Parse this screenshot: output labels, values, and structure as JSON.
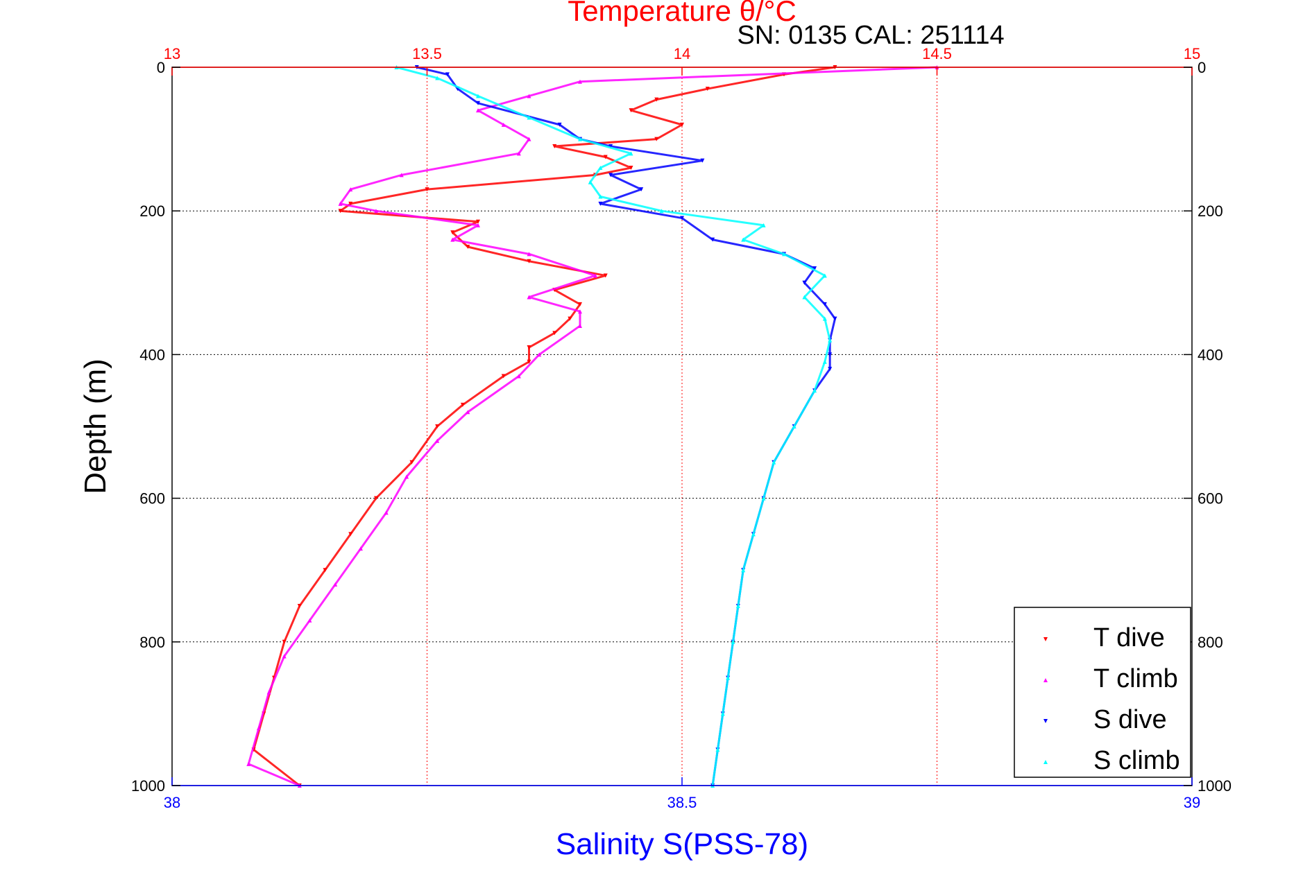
{
  "chart_data": {
    "type": "scatter",
    "title": "Temperature θ/°C",
    "subtitle": "SN: 0135  CAL: 251114",
    "xlabel_bottom": "Salinity S(PSS-78)",
    "xlabel_top": "Temperature θ/°C",
    "ylabel": "Depth (m)",
    "salinity_axis": {
      "lim": [
        38,
        39
      ],
      "ticks": [
        "38",
        "38.5",
        "39"
      ],
      "tick_values": [
        38,
        38.5,
        39
      ],
      "color": "#0000ff"
    },
    "temperature_axis": {
      "lim": [
        13,
        15
      ],
      "ticks": [
        "13",
        "13.5",
        "14",
        "14.5",
        "15"
      ],
      "tick_values": [
        13,
        13.5,
        14,
        14.5,
        15
      ],
      "color": "#ff0000"
    },
    "depth_axis": {
      "lim": [
        0,
        1000
      ],
      "reversed": true,
      "ticks": [
        "0",
        "200",
        "400",
        "600",
        "800",
        "1000"
      ],
      "tick_values": [
        0,
        200,
        400,
        600,
        800,
        1000
      ]
    },
    "grid": true,
    "legend_position": "bottom-right",
    "legend": [
      "T dive",
      "T climb",
      "S dive",
      "S climb"
    ],
    "series": [
      {
        "name": "T dive",
        "axis": "temperature",
        "color": "#ff0000",
        "marker": "triangle-down",
        "points": [
          [
            14.3,
            0
          ],
          [
            14.2,
            10
          ],
          [
            14.05,
            30
          ],
          [
            13.95,
            45
          ],
          [
            13.9,
            60
          ],
          [
            14.0,
            80
          ],
          [
            13.95,
            100
          ],
          [
            13.75,
            110
          ],
          [
            13.85,
            125
          ],
          [
            13.9,
            140
          ],
          [
            13.83,
            150
          ],
          [
            13.5,
            170
          ],
          [
            13.35,
            190
          ],
          [
            13.33,
            200
          ],
          [
            13.6,
            215
          ],
          [
            13.55,
            230
          ],
          [
            13.58,
            250
          ],
          [
            13.7,
            270
          ],
          [
            13.85,
            290
          ],
          [
            13.75,
            310
          ],
          [
            13.8,
            330
          ],
          [
            13.78,
            350
          ],
          [
            13.75,
            370
          ],
          [
            13.7,
            390
          ],
          [
            13.7,
            410
          ],
          [
            13.65,
            430
          ],
          [
            13.57,
            470
          ],
          [
            13.52,
            500
          ],
          [
            13.47,
            550
          ],
          [
            13.4,
            600
          ],
          [
            13.35,
            650
          ],
          [
            13.3,
            700
          ],
          [
            13.25,
            750
          ],
          [
            13.22,
            800
          ],
          [
            13.2,
            850
          ],
          [
            13.18,
            900
          ],
          [
            13.16,
            950
          ],
          [
            13.25,
            1000
          ]
        ]
      },
      {
        "name": "T climb",
        "axis": "temperature",
        "color": "#ff00ff",
        "marker": "triangle-up",
        "points": [
          [
            14.5,
            0
          ],
          [
            13.8,
            20
          ],
          [
            13.7,
            40
          ],
          [
            13.6,
            60
          ],
          [
            13.65,
            80
          ],
          [
            13.7,
            100
          ],
          [
            13.68,
            120
          ],
          [
            13.45,
            150
          ],
          [
            13.35,
            170
          ],
          [
            13.33,
            190
          ],
          [
            13.4,
            200
          ],
          [
            13.6,
            220
          ],
          [
            13.55,
            240
          ],
          [
            13.7,
            260
          ],
          [
            13.83,
            290
          ],
          [
            13.7,
            320
          ],
          [
            13.8,
            340
          ],
          [
            13.8,
            360
          ],
          [
            13.72,
            400
          ],
          [
            13.68,
            430
          ],
          [
            13.58,
            480
          ],
          [
            13.52,
            520
          ],
          [
            13.46,
            570
          ],
          [
            13.42,
            620
          ],
          [
            13.37,
            670
          ],
          [
            13.32,
            720
          ],
          [
            13.27,
            770
          ],
          [
            13.22,
            820
          ],
          [
            13.19,
            870
          ],
          [
            13.17,
            920
          ],
          [
            13.15,
            970
          ],
          [
            13.25,
            1000
          ]
        ]
      },
      {
        "name": "S dive",
        "axis": "salinity",
        "color": "#0000ff",
        "marker": "triangle-down",
        "points": [
          [
            38.24,
            0
          ],
          [
            38.27,
            10
          ],
          [
            38.28,
            30
          ],
          [
            38.3,
            50
          ],
          [
            38.38,
            80
          ],
          [
            38.4,
            100
          ],
          [
            38.43,
            110
          ],
          [
            38.52,
            130
          ],
          [
            38.43,
            150
          ],
          [
            38.46,
            170
          ],
          [
            38.42,
            190
          ],
          [
            38.5,
            210
          ],
          [
            38.53,
            240
          ],
          [
            38.6,
            260
          ],
          [
            38.63,
            280
          ],
          [
            38.62,
            300
          ],
          [
            38.64,
            330
          ],
          [
            38.65,
            350
          ],
          [
            38.645,
            380
          ],
          [
            38.645,
            400
          ],
          [
            38.645,
            420
          ],
          [
            38.63,
            450
          ],
          [
            38.61,
            500
          ],
          [
            38.59,
            550
          ],
          [
            38.58,
            600
          ],
          [
            38.57,
            650
          ],
          [
            38.56,
            700
          ],
          [
            38.555,
            750
          ],
          [
            38.55,
            800
          ],
          [
            38.545,
            850
          ],
          [
            38.54,
            900
          ],
          [
            38.535,
            950
          ],
          [
            38.53,
            1000
          ]
        ]
      },
      {
        "name": "S climb",
        "axis": "salinity",
        "color": "#00ffff",
        "marker": "triangle-up",
        "points": [
          [
            38.22,
            0
          ],
          [
            38.26,
            15
          ],
          [
            38.3,
            40
          ],
          [
            38.35,
            70
          ],
          [
            38.4,
            100
          ],
          [
            38.45,
            120
          ],
          [
            38.42,
            140
          ],
          [
            38.41,
            160
          ],
          [
            38.42,
            180
          ],
          [
            38.48,
            200
          ],
          [
            38.58,
            220
          ],
          [
            38.56,
            240
          ],
          [
            38.6,
            260
          ],
          [
            38.64,
            290
          ],
          [
            38.62,
            320
          ],
          [
            38.64,
            350
          ],
          [
            38.645,
            380
          ],
          [
            38.64,
            410
          ],
          [
            38.63,
            450
          ],
          [
            38.61,
            500
          ],
          [
            38.59,
            550
          ],
          [
            38.58,
            600
          ],
          [
            38.57,
            650
          ],
          [
            38.56,
            700
          ],
          [
            38.555,
            750
          ],
          [
            38.55,
            800
          ],
          [
            38.545,
            850
          ],
          [
            38.54,
            900
          ],
          [
            38.535,
            950
          ],
          [
            38.53,
            1000
          ]
        ]
      }
    ]
  }
}
